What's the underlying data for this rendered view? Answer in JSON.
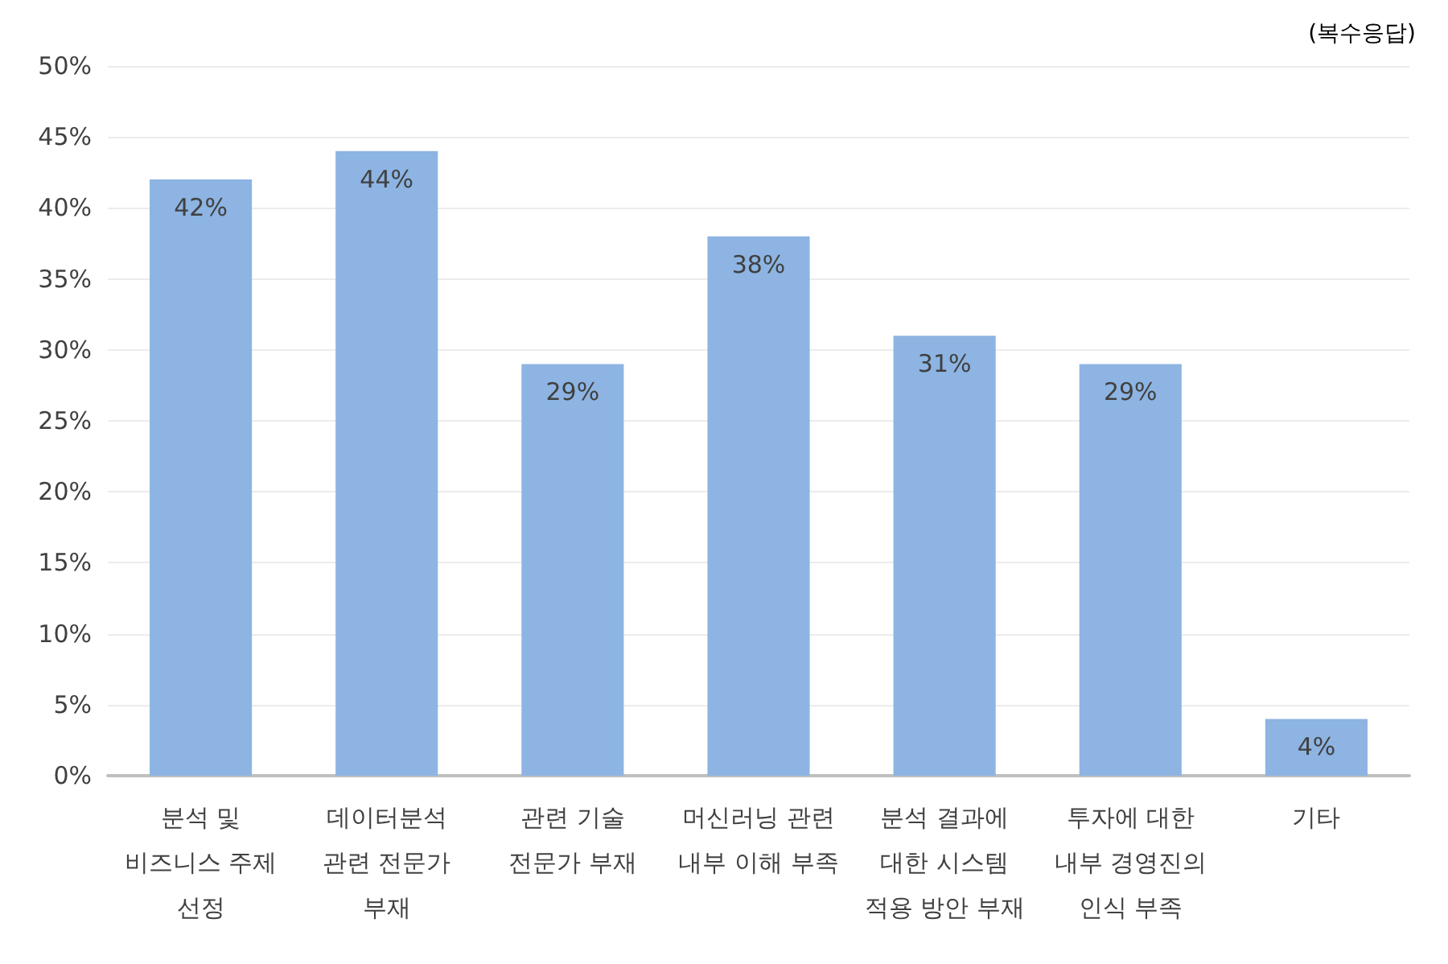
{
  "chart_data": {
    "type": "bar",
    "categories": [
      "분석 및\n비즈니스 주제\n선정",
      "데이터분석\n관련 전문가\n부재",
      "관련 기술\n전문가 부재",
      "머신러닝 관련\n내부 이해 부족",
      "분석 결과에\n대한 시스템\n적용 방안 부재",
      "투자에 대한\n내부 경영진의\n인식 부족",
      "기타"
    ],
    "values": [
      42,
      44,
      29,
      38,
      31,
      29,
      4
    ],
    "value_labels": [
      "42%",
      "44%",
      "29%",
      "38%",
      "31%",
      "29%",
      "4%"
    ],
    "color": "#8db4e2",
    "ylim": [
      0,
      50
    ],
    "yticks": [
      {
        "value": 0,
        "label": "0%"
      },
      {
        "value": 5,
        "label": "5%"
      },
      {
        "value": 10,
        "label": "10%"
      },
      {
        "value": 15,
        "label": "15%"
      },
      {
        "value": 20,
        "label": "20%"
      },
      {
        "value": 25,
        "label": "25%"
      },
      {
        "value": 30,
        "label": "30%"
      },
      {
        "value": 35,
        "label": "35%"
      },
      {
        "value": 40,
        "label": "40%"
      },
      {
        "value": 45,
        "label": "45%"
      },
      {
        "value": 50,
        "label": "50%"
      }
    ],
    "grid": true,
    "annotations": [
      "(복수응답)"
    ]
  }
}
